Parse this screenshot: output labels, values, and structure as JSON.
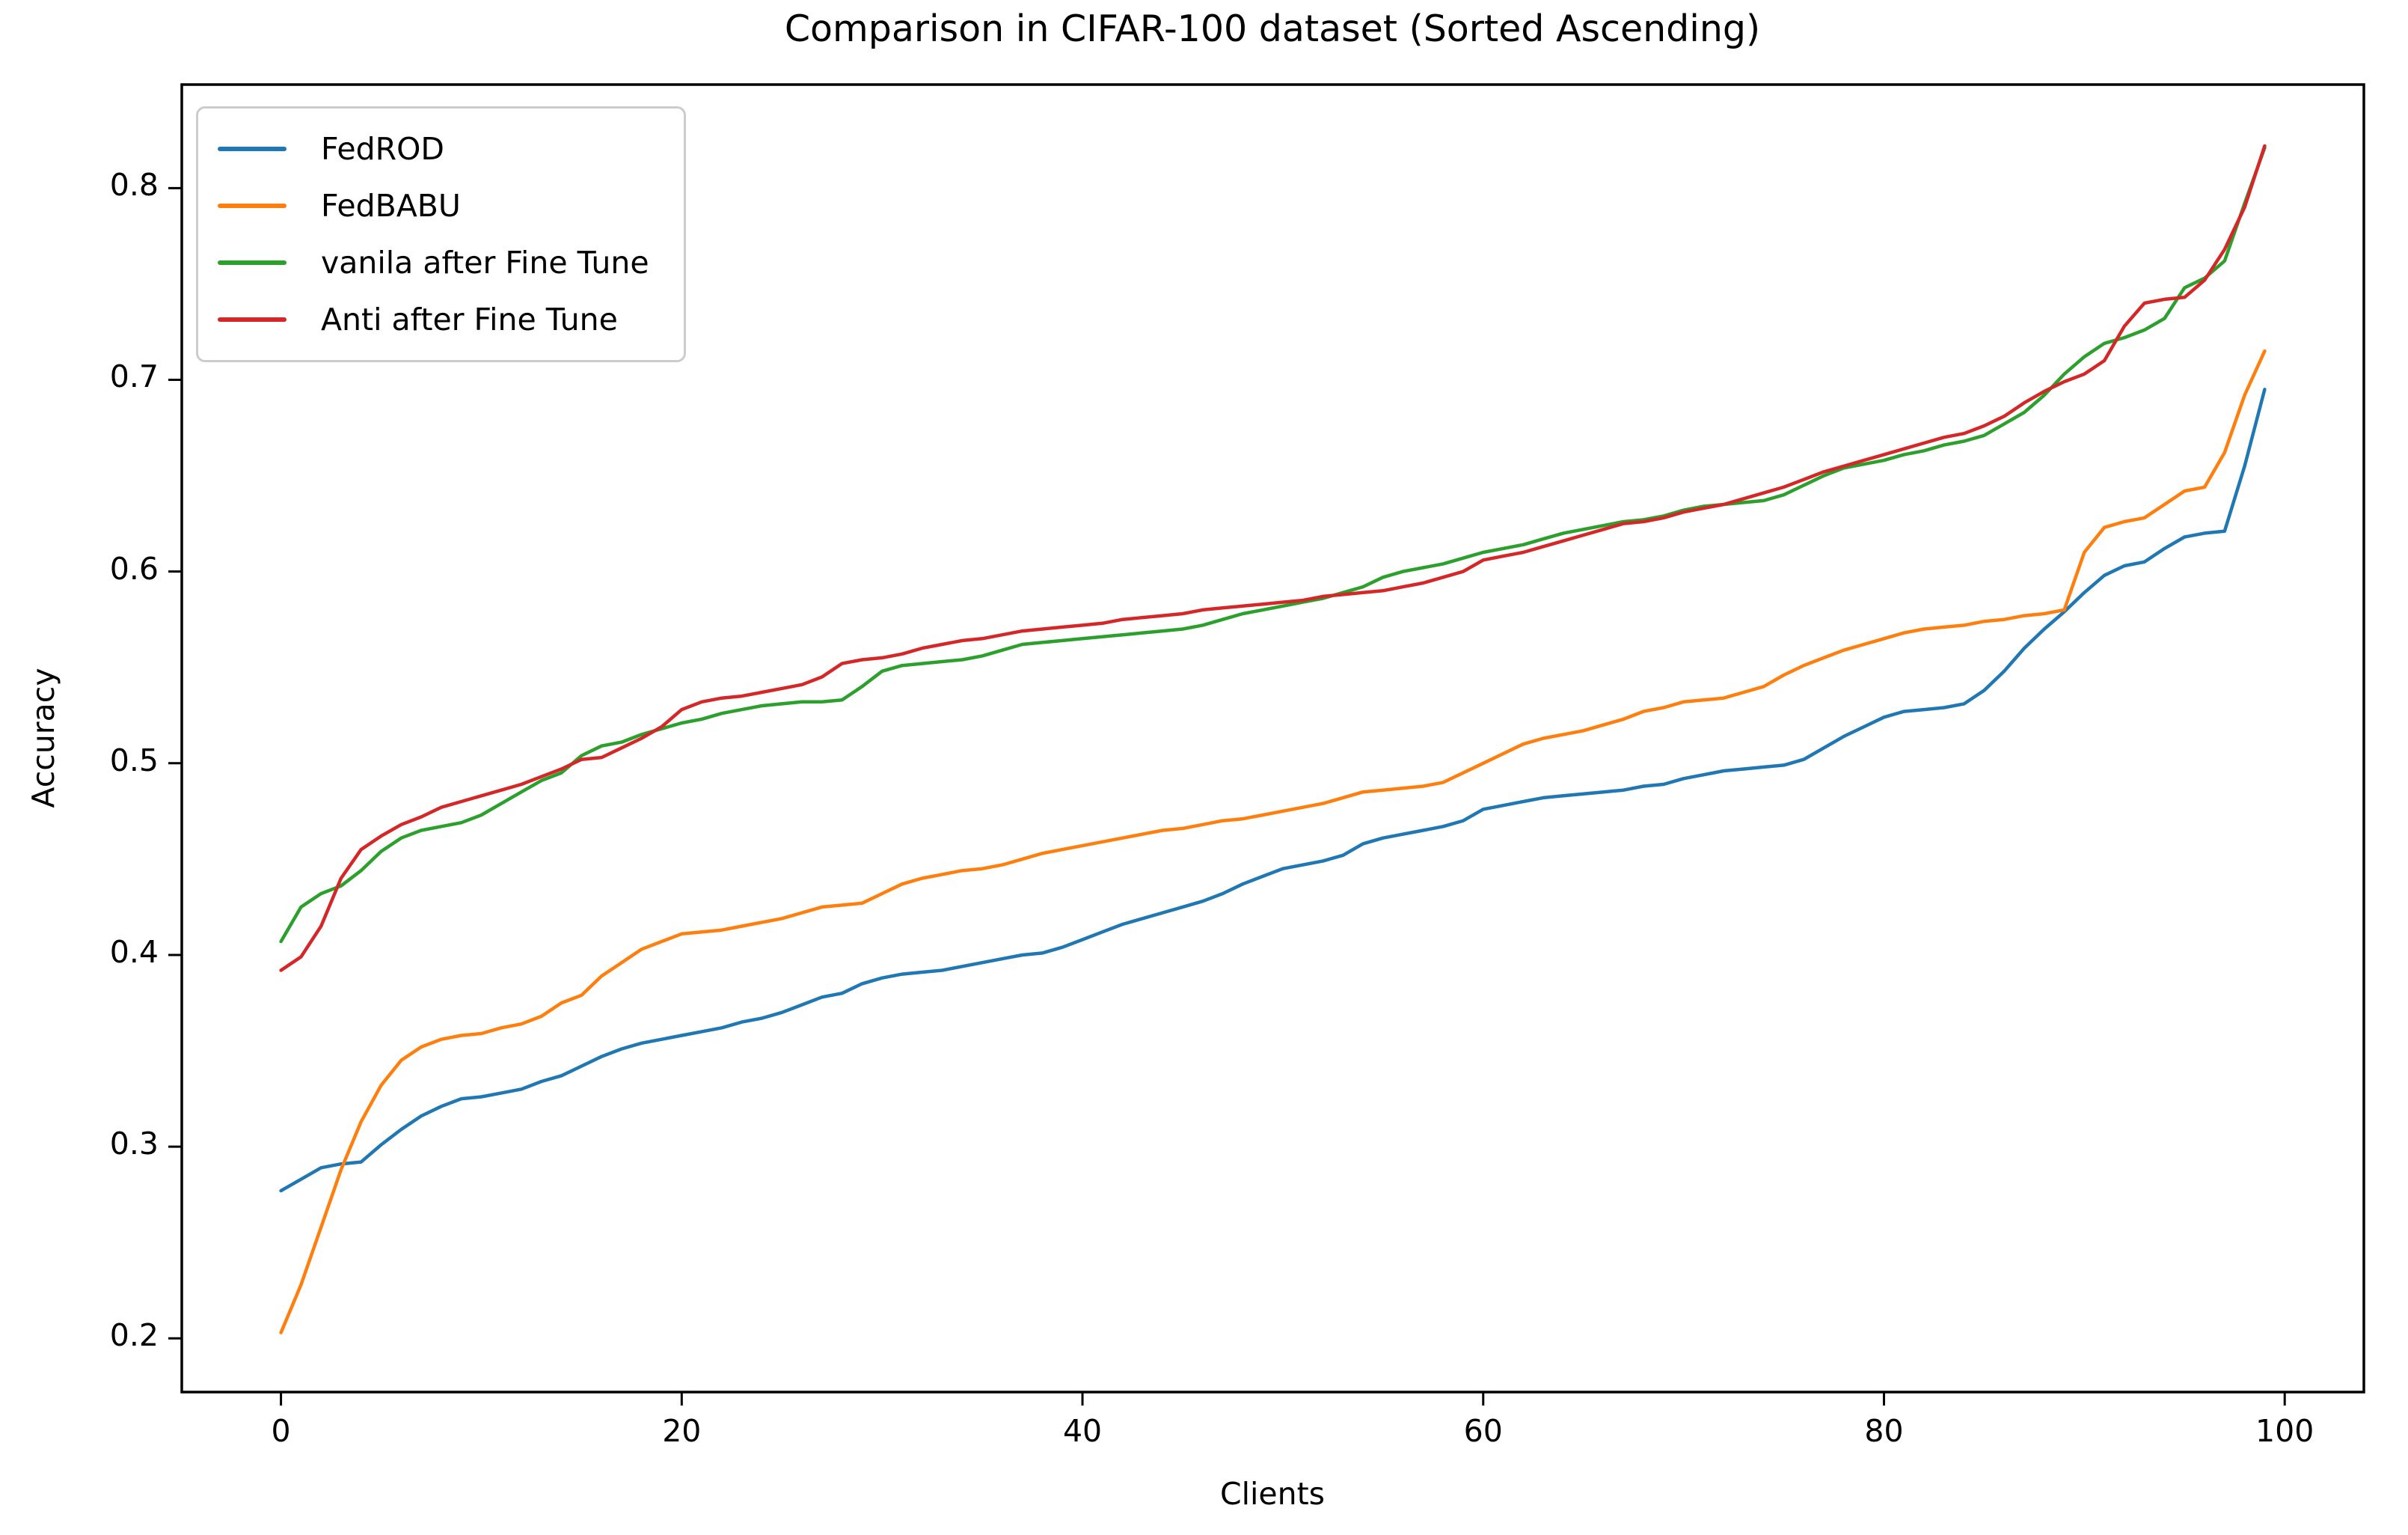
{
  "chart": {
    "title": "Comparison in CIFAR-100 dataset (Sorted Ascending)",
    "xlabel": "Clients",
    "ylabel": "Accuracy"
  },
  "chart_data": {
    "type": "line",
    "title": "Comparison in CIFAR-100 dataset (Sorted Ascending)",
    "xlabel": "Clients",
    "ylabel": "Accuracy",
    "grid": false,
    "legend_position": "upper left",
    "xlim": [
      -4.95,
      103.95
    ],
    "ylim": [
      0.172,
      0.854
    ],
    "xticks": [
      0,
      20,
      40,
      60,
      80,
      100
    ],
    "yticks": [
      0.2,
      0.3,
      0.4,
      0.5,
      0.6,
      0.7,
      0.8
    ],
    "x": [
      0,
      1,
      2,
      3,
      4,
      5,
      6,
      7,
      8,
      9,
      10,
      11,
      12,
      13,
      14,
      15,
      16,
      17,
      18,
      19,
      20,
      21,
      22,
      23,
      24,
      25,
      26,
      27,
      28,
      29,
      30,
      31,
      32,
      33,
      34,
      35,
      36,
      37,
      38,
      39,
      40,
      41,
      42,
      43,
      44,
      45,
      46,
      47,
      48,
      49,
      50,
      51,
      52,
      53,
      54,
      55,
      56,
      57,
      58,
      59,
      60,
      61,
      62,
      63,
      64,
      65,
      66,
      67,
      68,
      69,
      70,
      71,
      72,
      73,
      74,
      75,
      76,
      77,
      78,
      79,
      80,
      81,
      82,
      83,
      84,
      85,
      86,
      87,
      88,
      89,
      90,
      91,
      92,
      93,
      94,
      95,
      96,
      97,
      98,
      99
    ],
    "series": [
      {
        "name": "FedROD",
        "color": "#1f77b4",
        "values": [
          0.277,
          0.283,
          0.289,
          0.291,
          0.292,
          0.301,
          0.309,
          0.316,
          0.321,
          0.325,
          0.326,
          0.328,
          0.33,
          0.334,
          0.337,
          0.342,
          0.347,
          0.351,
          0.354,
          0.356,
          0.358,
          0.36,
          0.362,
          0.365,
          0.367,
          0.37,
          0.374,
          0.378,
          0.38,
          0.385,
          0.388,
          0.39,
          0.391,
          0.392,
          0.394,
          0.396,
          0.398,
          0.4,
          0.401,
          0.404,
          0.408,
          0.412,
          0.416,
          0.419,
          0.422,
          0.425,
          0.428,
          0.432,
          0.437,
          0.441,
          0.445,
          0.447,
          0.449,
          0.452,
          0.458,
          0.461,
          0.463,
          0.465,
          0.467,
          0.47,
          0.476,
          0.478,
          0.48,
          0.482,
          0.483,
          0.484,
          0.485,
          0.486,
          0.488,
          0.489,
          0.492,
          0.494,
          0.496,
          0.497,
          0.498,
          0.499,
          0.502,
          0.508,
          0.514,
          0.519,
          0.524,
          0.527,
          0.528,
          0.529,
          0.531,
          0.538,
          0.548,
          0.56,
          0.57,
          0.579,
          0.589,
          0.598,
          0.603,
          0.605,
          0.612,
          0.618,
          0.62,
          0.621,
          0.655,
          0.695
        ]
      },
      {
        "name": "FedBABU",
        "color": "#ff7f0e",
        "values": [
          0.203,
          0.228,
          0.258,
          0.288,
          0.313,
          0.332,
          0.345,
          0.352,
          0.356,
          0.358,
          0.359,
          0.362,
          0.364,
          0.368,
          0.375,
          0.379,
          0.389,
          0.396,
          0.403,
          0.407,
          0.411,
          0.412,
          0.413,
          0.415,
          0.417,
          0.419,
          0.422,
          0.425,
          0.426,
          0.427,
          0.432,
          0.437,
          0.44,
          0.442,
          0.444,
          0.445,
          0.447,
          0.45,
          0.453,
          0.455,
          0.457,
          0.459,
          0.461,
          0.463,
          0.465,
          0.466,
          0.468,
          0.47,
          0.471,
          0.473,
          0.475,
          0.477,
          0.479,
          0.482,
          0.485,
          0.486,
          0.487,
          0.488,
          0.49,
          0.495,
          0.5,
          0.505,
          0.51,
          0.513,
          0.515,
          0.517,
          0.52,
          0.523,
          0.527,
          0.529,
          0.532,
          0.533,
          0.534,
          0.537,
          0.54,
          0.546,
          0.551,
          0.555,
          0.559,
          0.562,
          0.565,
          0.568,
          0.57,
          0.571,
          0.572,
          0.574,
          0.575,
          0.577,
          0.578,
          0.58,
          0.61,
          0.623,
          0.626,
          0.628,
          0.635,
          0.642,
          0.644,
          0.662,
          0.692,
          0.715
        ]
      },
      {
        "name": "vanila after Fine Tune",
        "color": "#2ca02c",
        "values": [
          0.407,
          0.425,
          0.432,
          0.436,
          0.444,
          0.454,
          0.461,
          0.465,
          0.467,
          0.469,
          0.473,
          0.479,
          0.485,
          0.491,
          0.495,
          0.504,
          0.509,
          0.511,
          0.515,
          0.518,
          0.521,
          0.523,
          0.526,
          0.528,
          0.53,
          0.531,
          0.532,
          0.532,
          0.533,
          0.54,
          0.548,
          0.551,
          0.552,
          0.553,
          0.554,
          0.556,
          0.559,
          0.562,
          0.563,
          0.564,
          0.565,
          0.566,
          0.567,
          0.568,
          0.569,
          0.57,
          0.572,
          0.575,
          0.578,
          0.58,
          0.582,
          0.584,
          0.586,
          0.589,
          0.592,
          0.597,
          0.6,
          0.602,
          0.604,
          0.607,
          0.61,
          0.612,
          0.614,
          0.617,
          0.62,
          0.622,
          0.624,
          0.626,
          0.627,
          0.629,
          0.632,
          0.634,
          0.635,
          0.636,
          0.637,
          0.64,
          0.645,
          0.65,
          0.654,
          0.656,
          0.658,
          0.661,
          0.663,
          0.666,
          0.668,
          0.671,
          0.677,
          0.683,
          0.692,
          0.703,
          0.712,
          0.719,
          0.722,
          0.726,
          0.732,
          0.748,
          0.753,
          0.762,
          0.792,
          0.821
        ]
      },
      {
        "name": "Anti after Fine Tune",
        "color": "#d62728",
        "values": [
          0.392,
          0.399,
          0.415,
          0.44,
          0.455,
          0.462,
          0.468,
          0.472,
          0.477,
          0.48,
          0.483,
          0.486,
          0.489,
          0.493,
          0.497,
          0.502,
          0.503,
          0.508,
          0.513,
          0.519,
          0.528,
          0.532,
          0.534,
          0.535,
          0.537,
          0.539,
          0.541,
          0.545,
          0.552,
          0.554,
          0.555,
          0.557,
          0.56,
          0.562,
          0.564,
          0.565,
          0.567,
          0.569,
          0.57,
          0.571,
          0.572,
          0.573,
          0.575,
          0.576,
          0.577,
          0.578,
          0.58,
          0.581,
          0.582,
          0.583,
          0.584,
          0.585,
          0.587,
          0.588,
          0.589,
          0.59,
          0.592,
          0.594,
          0.597,
          0.6,
          0.606,
          0.608,
          0.61,
          0.613,
          0.616,
          0.619,
          0.622,
          0.625,
          0.626,
          0.628,
          0.631,
          0.633,
          0.635,
          0.638,
          0.641,
          0.644,
          0.648,
          0.652,
          0.655,
          0.658,
          0.661,
          0.664,
          0.667,
          0.67,
          0.672,
          0.676,
          0.681,
          0.688,
          0.694,
          0.699,
          0.703,
          0.71,
          0.728,
          0.74,
          0.742,
          0.743,
          0.752,
          0.768,
          0.79,
          0.822
        ]
      }
    ]
  }
}
